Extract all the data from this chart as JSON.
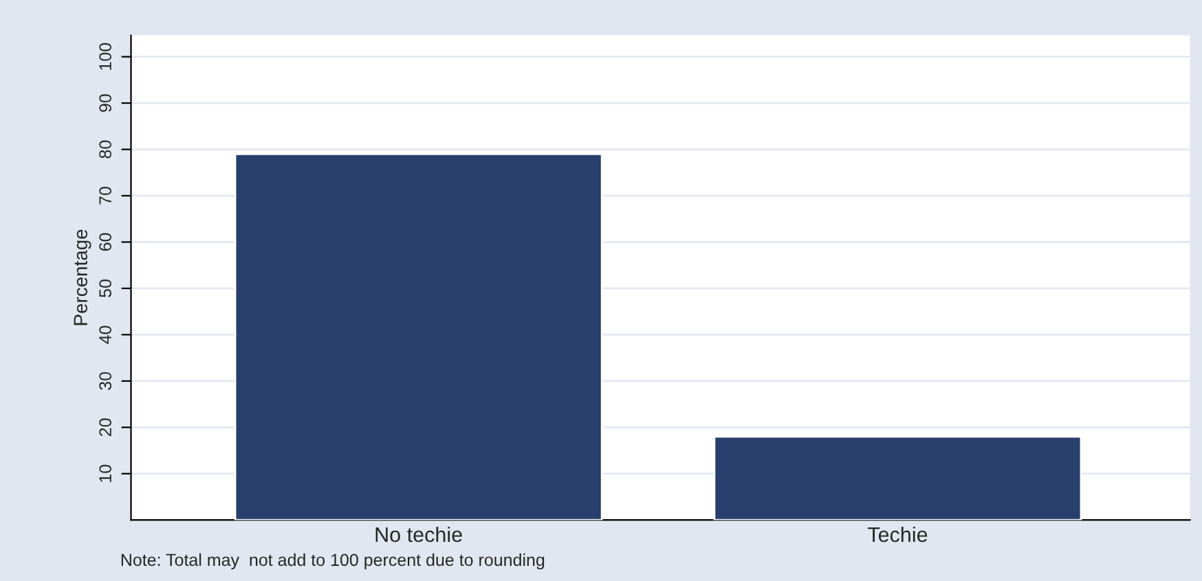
{
  "chart_data": {
    "type": "bar",
    "ylabel": "Percentage",
    "categories": [
      "No techie",
      "Techie"
    ],
    "values": [
      79,
      18
    ],
    "color": "#283f6d",
    "ylim": [
      0,
      104.6
    ],
    "yticks": [
      10,
      20,
      30,
      40,
      50,
      60,
      70,
      80,
      90,
      100
    ],
    "grid": "y",
    "annotations": [
      "Note: Total may  not add to 100 percent due to rounding"
    ]
  }
}
